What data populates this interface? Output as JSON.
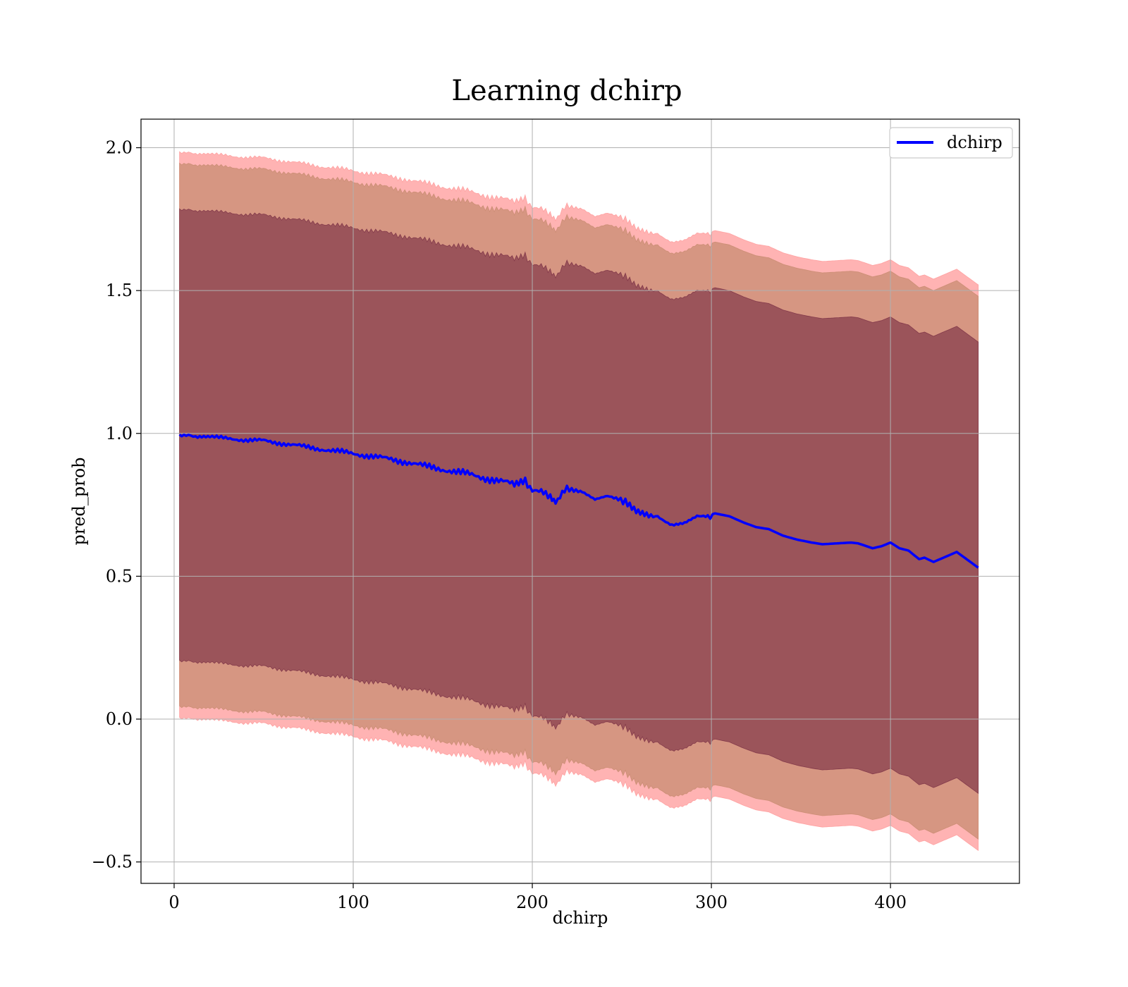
{
  "chart_data": {
    "type": "line",
    "title": "Learning dchirp",
    "xlabel": "dchirp",
    "ylabel": "pred_prob",
    "xlim": [
      -18.5,
      472
    ],
    "ylim": [
      -0.575,
      2.1
    ],
    "xticks": [
      0,
      100,
      200,
      300,
      400
    ],
    "xtick_labels": [
      "0",
      "100",
      "200",
      "300",
      "400"
    ],
    "yticks": [
      -0.5,
      0.0,
      0.5,
      1.0,
      1.5,
      2.0
    ],
    "ytick_labels": [
      "−0.5",
      "0.0",
      "0.5",
      "1.0",
      "1.5",
      "2.0"
    ],
    "grid": true,
    "legend": {
      "position": "top-right",
      "entries": [
        "dchirp"
      ]
    },
    "series": [
      {
        "name": "dchirp",
        "color": "#0000ff",
        "x": [
          3,
          8,
          12,
          20,
          30,
          40,
          50,
          60,
          70,
          80,
          90,
          100,
          110,
          120,
          130,
          140,
          150,
          160,
          170,
          180,
          190,
          196,
          200,
          205,
          210,
          213,
          218,
          222,
          228,
          235,
          242,
          248,
          252,
          258,
          265,
          270,
          278,
          285,
          292,
          298,
          302,
          310,
          318,
          325,
          332,
          340,
          348,
          356,
          362,
          370,
          378,
          382,
          390,
          395,
          400,
          405,
          410,
          416,
          419,
          424,
          437,
          449
        ],
        "y": [
          0.995,
          0.995,
          0.985,
          0.988,
          0.983,
          0.976,
          0.975,
          0.965,
          0.956,
          0.947,
          0.938,
          0.93,
          0.92,
          0.91,
          0.9,
          0.885,
          0.875,
          0.862,
          0.85,
          0.835,
          0.82,
          0.835,
          0.805,
          0.795,
          0.77,
          0.762,
          0.8,
          0.8,
          0.795,
          0.765,
          0.775,
          0.765,
          0.768,
          0.735,
          0.72,
          0.712,
          0.685,
          0.69,
          0.71,
          0.712,
          0.72,
          0.71,
          0.688,
          0.672,
          0.665,
          0.642,
          0.628,
          0.618,
          0.612,
          0.615,
          0.618,
          0.615,
          0.598,
          0.605,
          0.618,
          0.598,
          0.59,
          0.56,
          0.565,
          0.55,
          0.585,
          0.53
        ]
      }
    ],
    "bands": [
      {
        "kind": "std-1",
        "color": "#6b1f3a",
        "opacity": 0.55,
        "upper_offset": 0.79
      },
      {
        "kind": "std-2",
        "color": "#c58a6e",
        "opacity": 0.7,
        "upper_offset": 0.95
      },
      {
        "kind": "std-3",
        "color": "#ff9a9a",
        "opacity": 0.75,
        "upper_offset": 0.99
      }
    ]
  }
}
